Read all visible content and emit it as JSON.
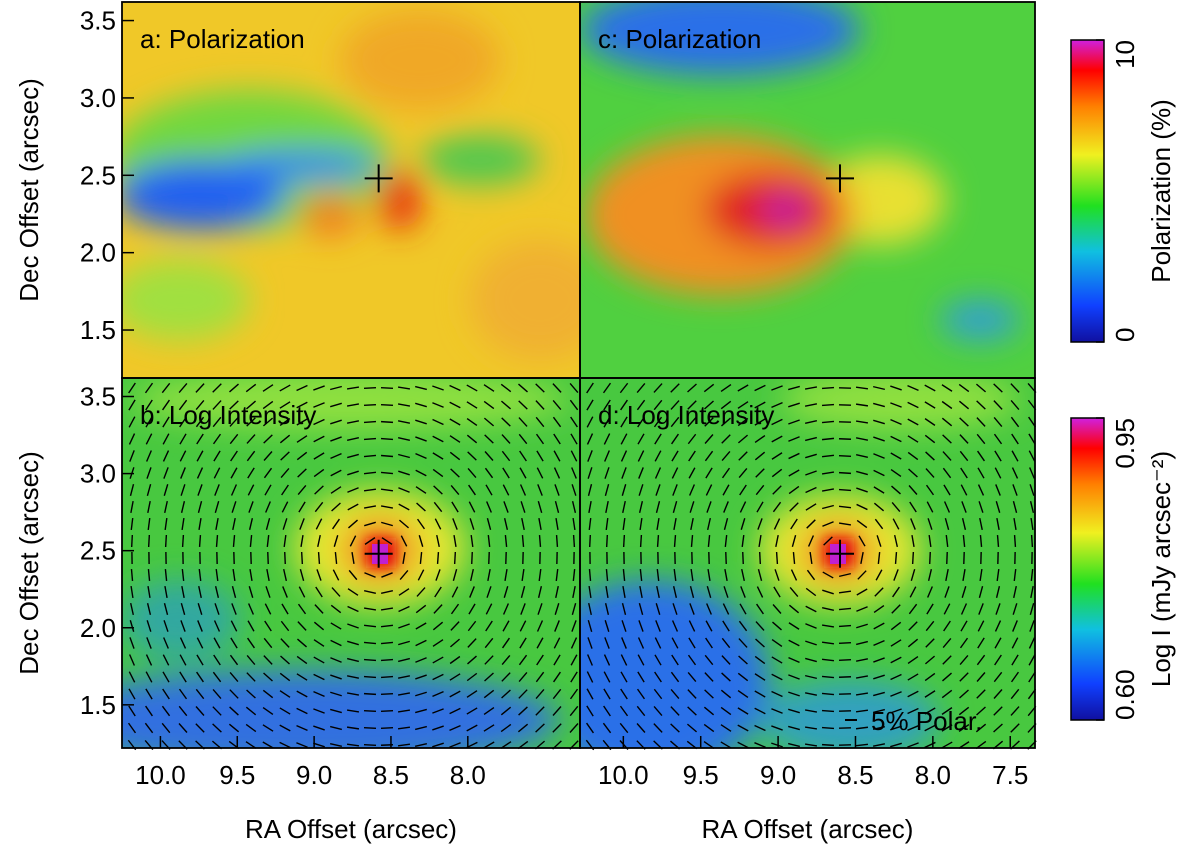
{
  "chart_data": [
    {
      "type": "heatmap",
      "title": "a: Polarization",
      "xlim": [
        10.25,
        7.27
      ],
      "ylim": [
        1.19,
        3.62
      ],
      "yticks": [
        1.5,
        {
          "value": 2,
          "label": "2.0"
        },
        2.5,
        {
          "value": 3,
          "label": "3.0"
        },
        3.5
      ],
      "ylabel": "Dec Offset (arcsec)",
      "source": {
        "x": 8.58,
        "y": 2.48
      }
    },
    {
      "type": "heatmap",
      "title": "c: Polarization",
      "xlim": [
        10.28,
        7.34
      ],
      "ylim": [
        1.19,
        3.62
      ],
      "source": {
        "x": 8.6,
        "y": 2.48
      }
    },
    {
      "type": "heatmap",
      "title": "b: Log Intensity",
      "xlim": [
        10.25,
        7.27
      ],
      "ylim": [
        1.22,
        3.62
      ],
      "yticks": [
        1.5,
        {
          "value": 2,
          "label": "2.0"
        },
        2.5,
        {
          "value": 3,
          "label": "3.0"
        },
        3.5
      ],
      "xticks": [
        {
          "value": 10,
          "label": "10.0"
        },
        9.5,
        {
          "value": 9,
          "label": "9.0"
        },
        8.5,
        {
          "value": 8,
          "label": "8.0"
        }
      ],
      "ylabel": "Dec Offset (arcsec)",
      "xlabel": "RA Offset (arcsec)",
      "source": {
        "x": 8.58,
        "y": 2.48
      }
    },
    {
      "type": "heatmap",
      "title": "d: Log Intensity",
      "xlim": [
        10.28,
        7.34
      ],
      "ylim": [
        1.22,
        3.62
      ],
      "xticks": [
        {
          "value": 10,
          "label": "10.0"
        },
        9.5,
        {
          "value": 9,
          "label": "9.0"
        },
        8.5,
        {
          "value": 8,
          "label": "8.0"
        },
        7.5
      ],
      "xlabel": "RA Offset (arcsec)",
      "source": {
        "x": 8.6,
        "y": 2.48
      },
      "annotation": "5% Polar."
    }
  ],
  "colorbars": [
    {
      "label": "Polarization (%)",
      "lim": [
        0,
        10
      ],
      "ticks": [
        0,
        10
      ]
    },
    {
      "label": "Log I (mJy arcsec⁻²)",
      "lim": [
        0.6,
        0.95
      ],
      "ticks": [
        {
          "value": 0.6,
          "label": "0.60"
        },
        0.95
      ]
    }
  ]
}
